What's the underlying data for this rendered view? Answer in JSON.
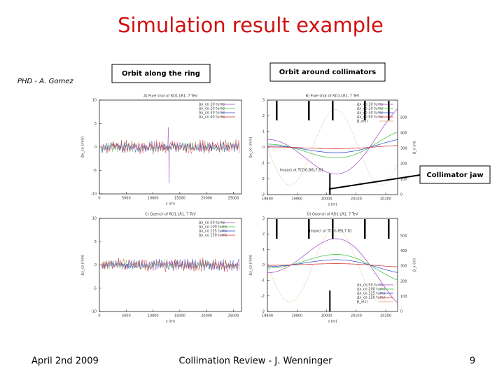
{
  "header": {
    "title": "Simulation result example"
  },
  "author": "PHD - A. Gomez",
  "labels": {
    "ring": "Orbit along the ring",
    "collimators": "Orbit around collimators",
    "jaw": "Collimator jaw"
  },
  "plots": [
    {
      "title": "A) Pure shot of RD1.LR1, 7 TeV",
      "xlabel": "s (m)",
      "ylabel": "Δx_co (mm)",
      "xticks": [
        "0",
        "5000",
        "10000",
        "15000",
        "20000",
        "25000"
      ],
      "yticks": [
        "10",
        "5",
        "0",
        "-5",
        "-10"
      ],
      "legend": [
        "Δx_co 10 turns",
        "Δx_co 20 turns",
        "Δx_co 30 turns",
        "Δx_co 40 turns"
      ]
    },
    {
      "title": "B) Pure shot of RD1.LR1, 7 TeV",
      "xlabel": "s (m)",
      "ylabel": "Δx_co (mm)",
      "y2label": "β_x (m)",
      "xticks": [
        "19800",
        "19900",
        "20000",
        "20100",
        "20200"
      ],
      "yticks": [
        "3",
        "2",
        "1",
        "0",
        "-1",
        "-2",
        "-3"
      ],
      "y2ticks": [
        "500",
        "400",
        "300",
        "200",
        "100",
        "0"
      ],
      "legend": [
        "Δx_co 10 turns",
        "Δx_co 20 turns",
        "Δx_co 30 turns",
        "Δx_co 50 turns",
        "β_x(s)"
      ],
      "annotation": "Impact at TCDQ.B6L7.B1"
    },
    {
      "title": "C) Quench of RD1.LR1, 7 TeV",
      "xlabel": "s (m)",
      "ylabel": "Δx_co (mm)",
      "xticks": [
        "0",
        "5000",
        "10000",
        "15000",
        "20000",
        "25000"
      ],
      "yticks": [
        "10",
        "5",
        "0",
        "-5",
        "-10"
      ],
      "legend": [
        "Δx_co 50 turns",
        "Δx_co 100 turns",
        "Δx_co 125 turns",
        "Δx_co 150 turns"
      ]
    },
    {
      "title": "D) Quench of RD1.LR1, 7 TeV",
      "xlabel": "s (m)",
      "ylabel": "Δx_co (mm)",
      "y2label": "β_x (m)",
      "xticks": [
        "19800",
        "19900",
        "20000",
        "20100",
        "20200"
      ],
      "yticks": [
        "3",
        "2",
        "1",
        "0",
        "-1",
        "-2",
        "-3"
      ],
      "y2ticks": [
        "500",
        "400",
        "300",
        "200",
        "100",
        "0"
      ],
      "legend": [
        "Δx_co 50 turns",
        "Δx_co 100 turns",
        "Δx_co 125 turns",
        "Δx_co 150 turns",
        "β_x(s)"
      ],
      "annotation": "Impact at TCSG.B5L7.B1"
    }
  ],
  "footer": {
    "date": "April 2nd 2009",
    "event": "Collimation Review - J. Wenninger",
    "page": "9"
  }
}
